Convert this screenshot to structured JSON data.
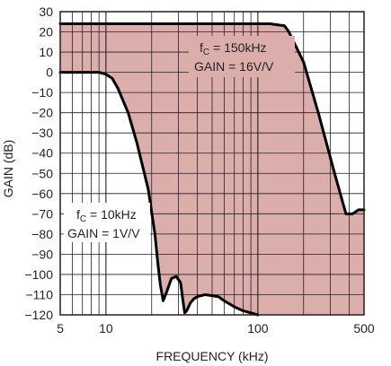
{
  "chart_data": {
    "type": "line",
    "xlabel": "FREQUENCY (kHz)",
    "ylabel": "GAIN (dB)",
    "xscale": "log",
    "xlim": [
      5,
      500
    ],
    "ylim": [
      -120,
      30
    ],
    "x_ticks": [
      5,
      10,
      100,
      500
    ],
    "y_ticks": [
      30,
      20,
      10,
      0,
      -10,
      -20,
      -30,
      -40,
      -50,
      -60,
      -70,
      -80,
      -90,
      -100,
      -110,
      -120
    ],
    "grid": true,
    "shaded_region_color": "#dbaeab",
    "line_color": "#000000",
    "series": [
      {
        "annotation": {
          "fc_main": "f",
          "fc_sub": "C",
          "fc_value": " = 150kHz",
          "gain": "GAIN = 16V/V"
        },
        "x": [
          5,
          20,
          60,
          120,
          150,
          160,
          200,
          250,
          320,
          380,
          420,
          460,
          500
        ],
        "y": [
          24,
          24,
          24,
          24,
          23,
          20,
          5,
          -20,
          -50,
          -70,
          -70,
          -68,
          -68
        ]
      },
      {
        "annotation": {
          "fc_main": "f",
          "fc_sub": "C",
          "fc_value": " = 10kHz",
          "gain": "GAIN = 1V/V"
        },
        "x": [
          5,
          8,
          9,
          10,
          11,
          12,
          14,
          16,
          19,
          21,
          22,
          22.8,
          23.8,
          25,
          27,
          29,
          31,
          32,
          33,
          34,
          36,
          38,
          40,
          45,
          50,
          55,
          60,
          70,
          80,
          100
        ],
        "y": [
          0,
          0,
          0,
          -1,
          -3,
          -8,
          -20,
          -35,
          -58,
          -80,
          -95,
          -105,
          -113,
          -109,
          -102,
          -101,
          -104,
          -112,
          -119,
          -118,
          -114,
          -112,
          -111,
          -110,
          -110.5,
          -111,
          -113,
          -116,
          -118,
          -120
        ]
      }
    ]
  }
}
